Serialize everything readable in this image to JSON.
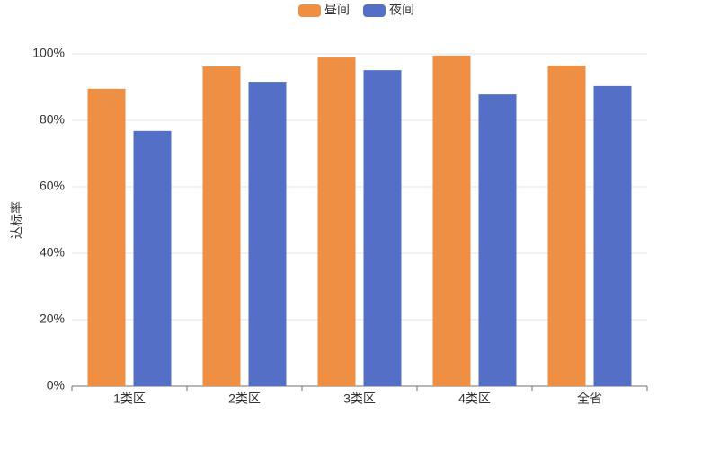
{
  "chart_data": {
    "type": "bar",
    "y_label": "达标率",
    "categories": [
      "1类区",
      "2类区",
      "3类区",
      "4类区",
      "全省"
    ],
    "series": [
      {
        "name": "昼间",
        "color": "#ee8f44",
        "values": [
          89.5,
          96.2,
          98.9,
          99.5,
          96.5
        ]
      },
      {
        "name": "夜间",
        "color": "#5470c6",
        "values": [
          76.8,
          91.6,
          95.1,
          87.8,
          90.3
        ]
      }
    ],
    "ylim": [
      0,
      100
    ],
    "yticks": [
      {
        "value": 0,
        "label": "0%"
      },
      {
        "value": 20,
        "label": "20%"
      },
      {
        "value": 40,
        "label": "40%"
      },
      {
        "value": 60,
        "label": "60%"
      },
      {
        "value": 80,
        "label": "80%"
      },
      {
        "value": 100,
        "label": "100%"
      }
    ],
    "grid": true,
    "legend": "top"
  }
}
